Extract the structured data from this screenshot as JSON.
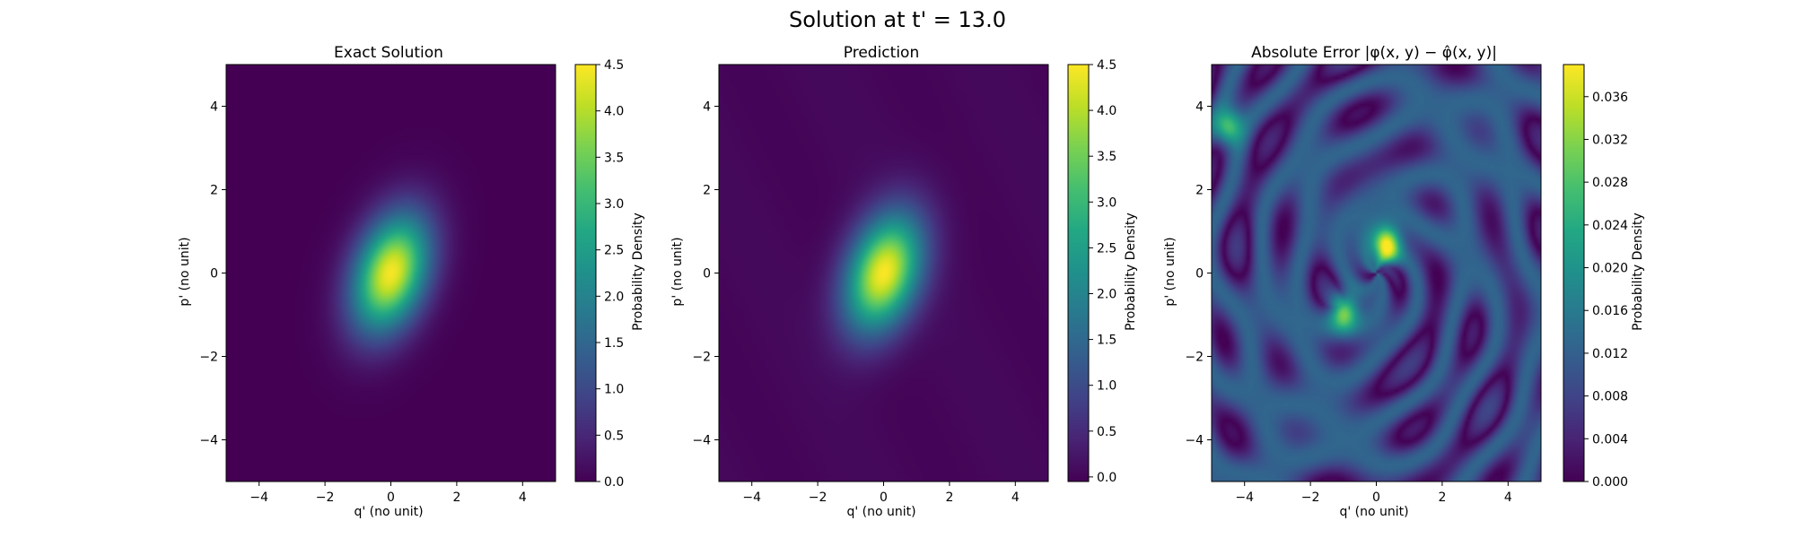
{
  "figure": {
    "title": "Solution at t' = 13.0"
  },
  "colormap": "viridis",
  "chart_data": [
    {
      "type": "heatmap",
      "title": "Exact Solution",
      "xlabel": "q' (no unit)",
      "ylabel": "p' (no unit)",
      "xlim": [
        -5,
        5
      ],
      "ylim": [
        -5,
        5
      ],
      "xticks": [
        "−4",
        "−2",
        "0",
        "2",
        "4"
      ],
      "yticks": [
        "−4",
        "−2",
        "0",
        "2",
        "4"
      ],
      "colorbar": {
        "label": "Probability Density",
        "range": [
          0.0,
          4.5
        ],
        "ticks": [
          "0.0",
          "0.5",
          "1.0",
          "1.5",
          "2.0",
          "2.5",
          "3.0",
          "3.5",
          "4.0",
          "4.5"
        ]
      },
      "field": {
        "shape": "rotated-gaussian",
        "center": [
          0,
          0
        ],
        "peak_value": 4.45,
        "sigma_major": 1.05,
        "sigma_minor": 0.72,
        "orientation_deg": 60
      }
    },
    {
      "type": "heatmap",
      "title": "Prediction",
      "xlabel": "q' (no unit)",
      "ylabel": "p' (no unit)",
      "xlim": [
        -5,
        5
      ],
      "ylim": [
        -5,
        5
      ],
      "xticks": [
        "−4",
        "−2",
        "0",
        "2",
        "4"
      ],
      "yticks": [
        "−4",
        "−2",
        "0",
        "2",
        "4"
      ],
      "colorbar": {
        "label": "Probability Density",
        "range": [
          -0.05,
          4.5
        ],
        "ticks": [
          "0.0",
          "0.5",
          "1.0",
          "1.5",
          "2.0",
          "2.5",
          "3.0",
          "3.5",
          "4.0",
          "4.5"
        ]
      },
      "field": {
        "shape": "rotated-gaussian",
        "center": [
          0,
          0
        ],
        "peak_value": 4.45,
        "sigma_major": 1.05,
        "sigma_minor": 0.72,
        "orientation_deg": 60
      }
    },
    {
      "type": "heatmap",
      "title": "Absolute Error |φ(x, y) − φ̂(x, y)|",
      "xlabel": "q' (no unit)",
      "ylabel": "p' (no unit)",
      "xlim": [
        -5,
        5
      ],
      "ylim": [
        -5,
        5
      ],
      "xticks": [
        "−4",
        "−2",
        "0",
        "2",
        "4"
      ],
      "yticks": [
        "−4",
        "−2",
        "0",
        "2",
        "4"
      ],
      "colorbar": {
        "label": "Probability Density",
        "range": [
          0.0,
          0.039
        ],
        "ticks": [
          "0.000",
          "0.004",
          "0.008",
          "0.012",
          "0.016",
          "0.020",
          "0.024",
          "0.028",
          "0.032",
          "0.036"
        ]
      },
      "field": {
        "shape": "oscillatory-error",
        "max_value": 0.039,
        "hotspots": [
          {
            "x": 0.3,
            "y": 0.7,
            "value": 0.039
          },
          {
            "x": -1.0,
            "y": -0.9,
            "value": 0.03
          },
          {
            "x": -4.5,
            "y": 3.5,
            "value": 0.022
          }
        ]
      }
    }
  ]
}
